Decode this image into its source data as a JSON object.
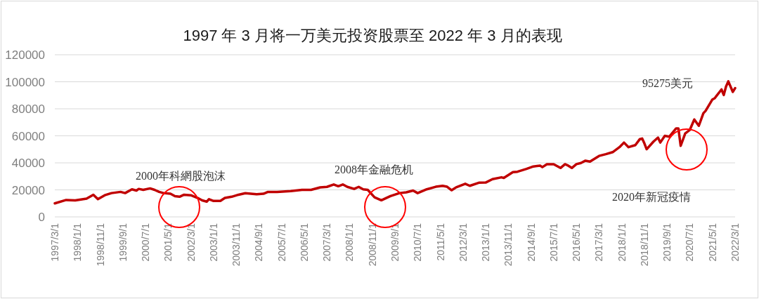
{
  "chart_data": {
    "type": "line",
    "title": "1997 年 3 月将一万美元投资股票至 2022 年 3 月的表现",
    "x": [
      "1997-03",
      "1997-08",
      "1997-12",
      "1998-05",
      "1998-08",
      "1998-10",
      "1999-01",
      "1999-04",
      "1999-08",
      "1999-10",
      "2000-01",
      "2000-03",
      "2000-04",
      "2000-06",
      "2000-09",
      "2000-11",
      "2001-01",
      "2001-03",
      "2001-06",
      "2001-08",
      "2001-10",
      "2001-12",
      "2002-03",
      "2002-06",
      "2002-08",
      "2002-10",
      "2002-11",
      "2003-01",
      "2003-04",
      "2003-06",
      "2003-09",
      "2003-12",
      "2004-03",
      "2004-08",
      "2004-11",
      "2005-01",
      "2005-05",
      "2005-11",
      "2006-04",
      "2006-08",
      "2006-12",
      "2007-03",
      "2007-06",
      "2007-08",
      "2007-10",
      "2007-12",
      "2008-03",
      "2008-05",
      "2008-07",
      "2008-09",
      "2008-12",
      "2009-03",
      "2009-07",
      "2009-11",
      "2010-02",
      "2010-05",
      "2010-07",
      "2010-11",
      "2011-03",
      "2011-06",
      "2011-08",
      "2011-10",
      "2011-12",
      "2012-04",
      "2012-06",
      "2012-10",
      "2013-01",
      "2013-04",
      "2013-08",
      "2013-09",
      "2014-01",
      "2014-03",
      "2014-07",
      "2014-10",
      "2015-01",
      "2015-02",
      "2015-04",
      "2015-07",
      "2015-10",
      "2015-12",
      "2016-01",
      "2016-03",
      "2016-05",
      "2016-07",
      "2016-09",
      "2016-11",
      "2017-03",
      "2017-06",
      "2017-09",
      "2017-12",
      "2018-02",
      "2018-04",
      "2018-07",
      "2018-09",
      "2018-10",
      "2018-11",
      "2018-12",
      "2019-03",
      "2019-05",
      "2019-06",
      "2019-08",
      "2019-10",
      "2020-01",
      "2020-02",
      "2020-03",
      "2020-05",
      "2020-07",
      "2020-09",
      "2020-11",
      "2021-01",
      "2021-02",
      "2021-05",
      "2021-06",
      "2021-09",
      "2021-10",
      "2021-11",
      "2021-12",
      "2022-02",
      "2022-03"
    ],
    "series": [
      {
        "color": "#c00000",
        "values": [
          10000,
          12500,
          12200,
          13500,
          16400,
          13100,
          16000,
          17600,
          18500,
          17600,
          20400,
          19500,
          20700,
          20000,
          21100,
          20000,
          18500,
          17600,
          17100,
          15300,
          14900,
          16400,
          16000,
          14000,
          12200,
          11300,
          13100,
          11800,
          11800,
          14000,
          14900,
          16400,
          17500,
          16700,
          17100,
          18500,
          18500,
          19100,
          20000,
          20000,
          21800,
          22200,
          24000,
          22700,
          24000,
          22200,
          20700,
          22200,
          20400,
          20000,
          14500,
          12300,
          15400,
          17600,
          18200,
          19500,
          17600,
          20400,
          22300,
          23000,
          22300,
          19700,
          21900,
          24500,
          23000,
          25300,
          25400,
          27900,
          29300,
          28800,
          33100,
          33400,
          35500,
          37300,
          37900,
          36800,
          39000,
          39000,
          36200,
          39000,
          38300,
          36200,
          39000,
          39900,
          41600,
          40900,
          45100,
          46400,
          47900,
          51600,
          55000,
          51600,
          53100,
          57600,
          58000,
          54400,
          50100,
          55700,
          58700,
          55000,
          60000,
          59400,
          65500,
          65500,
          52600,
          61800,
          64300,
          72100,
          67400,
          76700,
          78500,
          86900,
          87800,
          94300,
          90200,
          96500,
          100300,
          92500,
          95275
        ]
      }
    ],
    "xlim": [
      "1997-03",
      "2022-03"
    ],
    "xticks": [
      {
        "value": "1997-03",
        "label": "1997/3/1"
      },
      {
        "value": "1998-01",
        "label": "1998/1/1"
      },
      {
        "value": "1998-11",
        "label": "1998/11/1"
      },
      {
        "value": "1999-09",
        "label": "1999/9/1"
      },
      {
        "value": "2000-07",
        "label": "2000/7/1"
      },
      {
        "value": "2001-05",
        "label": "2001/5/1"
      },
      {
        "value": "2002-03",
        "label": "2002/3/1"
      },
      {
        "value": "2003-01",
        "label": "2003/1/1"
      },
      {
        "value": "2003-11",
        "label": "2003/11/1"
      },
      {
        "value": "2004-09",
        "label": "2004/9/1"
      },
      {
        "value": "2005-07",
        "label": "2005/7/1"
      },
      {
        "value": "2006-05",
        "label": "2006/5/1"
      },
      {
        "value": "2007-03",
        "label": "2007/3/1"
      },
      {
        "value": "2008-01",
        "label": "2008/1/1"
      },
      {
        "value": "2008-11",
        "label": "2008/11/1"
      },
      {
        "value": "2009-09",
        "label": "2009/9/1"
      },
      {
        "value": "2010-07",
        "label": "2010/7/1"
      },
      {
        "value": "2011-05",
        "label": "2011/5/1"
      },
      {
        "value": "2012-03",
        "label": "2012/3/1"
      },
      {
        "value": "2013-01",
        "label": "2013/1/1"
      },
      {
        "value": "2013-11",
        "label": "2013/11/1"
      },
      {
        "value": "2014-09",
        "label": "2014/9/1"
      },
      {
        "value": "2015-07",
        "label": "2015/7/1"
      },
      {
        "value": "2016-05",
        "label": "2016/5/1"
      },
      {
        "value": "2017-03",
        "label": "2017/3/1"
      },
      {
        "value": "2018-01",
        "label": "2018/1/1"
      },
      {
        "value": "2018-11",
        "label": "2018/11/1"
      },
      {
        "value": "2019-09",
        "label": "2019/9/1"
      },
      {
        "value": "2020-07",
        "label": "2020/7/1"
      },
      {
        "value": "2021-05",
        "label": "2021/5/1"
      },
      {
        "value": "2022-03",
        "label": "2022/3/1"
      }
    ],
    "ylim": [
      0,
      120000
    ],
    "yticks": [
      0,
      20000,
      40000,
      60000,
      80000,
      100000,
      120000
    ],
    "grid": "y",
    "annotations": [
      "2000年科網股泡沫",
      "2008年金融危机",
      "95275美元",
      "2020年新冠疫情"
    ]
  }
}
